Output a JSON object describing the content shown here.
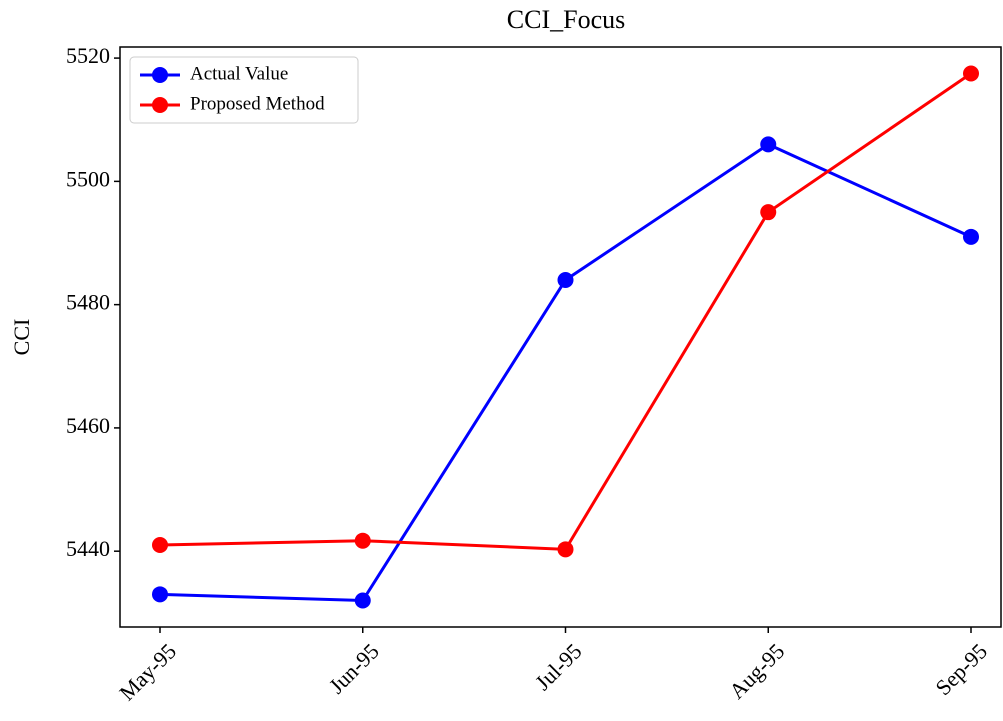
{
  "chart_data": {
    "type": "line",
    "title": "CCI_Focus",
    "ylabel": "CCI",
    "categories": [
      "May-95",
      "Jun-95",
      "Jul-95",
      "Aug-95",
      "Sep-95"
    ],
    "series": [
      {
        "name": "Actual Value",
        "color": "#0000ff",
        "values": [
          5433,
          5432,
          5484,
          5506,
          5491
        ]
      },
      {
        "name": "Proposed Method",
        "color": "#ff0000",
        "values": [
          5441,
          5441.7,
          5440.3,
          5495,
          5517.5
        ]
      }
    ],
    "ylim": [
      5427.7,
      5521.8
    ],
    "yticks": [
      5440,
      5460,
      5480,
      5500,
      5520
    ],
    "legend": "upper left",
    "grid": false
  }
}
